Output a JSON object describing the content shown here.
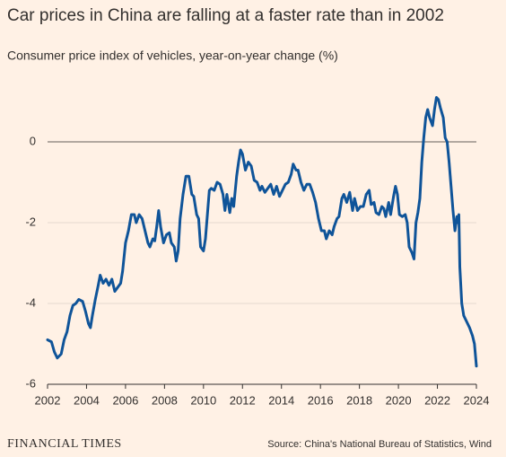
{
  "chart_data": {
    "type": "line",
    "title": "Car prices in China are falling at a faster rate than in 2002",
    "subtitle": "Consumer price index of vehicles, year-on-year change (%)",
    "logo": "FINANCIAL TIMES",
    "source": "Source: China's National Bureau of Statistics, Wind",
    "color": "#0f5499",
    "xlim": [
      2002,
      2024
    ],
    "xticks": [
      2002,
      2004,
      2006,
      2008,
      2010,
      2012,
      2014,
      2016,
      2018,
      2020,
      2022,
      2024
    ],
    "ylim": [
      -6,
      1.5
    ],
    "yticks": [
      0,
      -2,
      -4,
      -6
    ],
    "grid": true,
    "x": [
      2002.0,
      2002.2,
      2002.35,
      2002.5,
      2002.7,
      2002.85,
      2003.0,
      2003.15,
      2003.3,
      2003.45,
      2003.6,
      2003.8,
      2003.95,
      2004.1,
      2004.2,
      2004.3,
      2004.45,
      2004.6,
      2004.7,
      2004.85,
      2005.0,
      2005.15,
      2005.3,
      2005.45,
      2005.6,
      2005.75,
      2005.85,
      2006.0,
      2006.15,
      2006.3,
      2006.45,
      2006.55,
      2006.7,
      2006.85,
      2007.0,
      2007.15,
      2007.25,
      2007.4,
      2007.5,
      2007.6,
      2007.7,
      2007.8,
      2007.95,
      2008.1,
      2008.25,
      2008.35,
      2008.5,
      2008.6,
      2008.7,
      2008.8,
      2008.95,
      2009.1,
      2009.25,
      2009.4,
      2009.5,
      2009.65,
      2009.75,
      2009.85,
      2010.0,
      2010.1,
      2010.2,
      2010.3,
      2010.4,
      2010.55,
      2010.7,
      2010.85,
      2011.0,
      2011.1,
      2011.2,
      2011.35,
      2011.45,
      2011.55,
      2011.7,
      2011.8,
      2011.9,
      2012.0,
      2012.15,
      2012.3,
      2012.45,
      2012.6,
      2012.75,
      2012.9,
      2013.0,
      2013.15,
      2013.3,
      2013.45,
      2013.6,
      2013.75,
      2013.9,
      2014.05,
      2014.2,
      2014.35,
      2014.5,
      2014.6,
      2014.75,
      2014.85,
      2015.0,
      2015.15,
      2015.3,
      2015.45,
      2015.6,
      2015.75,
      2015.9,
      2016.05,
      2016.2,
      2016.3,
      2016.45,
      2016.6,
      2016.7,
      2016.85,
      2016.95,
      2017.1,
      2017.2,
      2017.35,
      2017.5,
      2017.65,
      2017.75,
      2017.9,
      2018.05,
      2018.2,
      2018.35,
      2018.5,
      2018.6,
      2018.75,
      2018.85,
      2019.0,
      2019.15,
      2019.25,
      2019.35,
      2019.5,
      2019.6,
      2019.75,
      2019.85,
      2019.95,
      2020.05,
      2020.2,
      2020.35,
      2020.45,
      2020.55,
      2020.7,
      2020.8,
      2020.9,
      2021.0,
      2021.1,
      2021.2,
      2021.3,
      2021.4,
      2021.5,
      2021.6,
      2021.75,
      2021.85,
      2021.95,
      2022.05,
      2022.15,
      2022.3,
      2022.4,
      2022.5,
      2022.6,
      2022.7,
      2022.8,
      2022.9,
      2023.0,
      2023.05,
      2023.1,
      2023.15,
      2023.25,
      2023.35,
      2023.5,
      2023.65,
      2023.8,
      2023.9,
      2024.0
    ],
    "values": [
      -4.9,
      -4.95,
      -5.2,
      -5.35,
      -5.25,
      -4.9,
      -4.7,
      -4.3,
      -4.05,
      -4.0,
      -3.9,
      -3.95,
      -4.2,
      -4.5,
      -4.6,
      -4.3,
      -3.9,
      -3.55,
      -3.3,
      -3.5,
      -3.4,
      -3.55,
      -3.4,
      -3.7,
      -3.6,
      -3.5,
      -3.2,
      -2.5,
      -2.2,
      -1.8,
      -1.8,
      -2.0,
      -1.8,
      -1.9,
      -2.2,
      -2.5,
      -2.6,
      -2.4,
      -2.45,
      -2.1,
      -1.7,
      -2.1,
      -2.5,
      -2.3,
      -2.25,
      -2.5,
      -2.6,
      -2.95,
      -2.7,
      -1.9,
      -1.3,
      -0.85,
      -0.85,
      -1.3,
      -1.35,
      -1.8,
      -1.9,
      -2.6,
      -2.7,
      -2.4,
      -1.8,
      -1.2,
      -1.15,
      -1.2,
      -1.0,
      -1.05,
      -1.3,
      -1.7,
      -1.3,
      -1.75,
      -1.4,
      -1.6,
      -0.85,
      -0.5,
      -0.2,
      -0.3,
      -0.7,
      -0.5,
      -0.6,
      -0.95,
      -1.0,
      -1.2,
      -1.1,
      -1.25,
      -1.15,
      -1.05,
      -1.3,
      -1.1,
      -1.35,
      -1.2,
      -1.05,
      -1.0,
      -0.8,
      -0.55,
      -0.7,
      -0.7,
      -1.0,
      -1.2,
      -1.05,
      -1.05,
      -1.25,
      -1.5,
      -1.9,
      -2.2,
      -2.2,
      -2.4,
      -2.2,
      -2.3,
      -2.1,
      -1.9,
      -1.85,
      -1.4,
      -1.3,
      -1.5,
      -1.25,
      -1.7,
      -1.4,
      -1.7,
      -1.6,
      -1.6,
      -1.3,
      -1.2,
      -1.55,
      -1.5,
      -1.75,
      -1.8,
      -1.6,
      -1.65,
      -1.85,
      -1.5,
      -1.8,
      -1.35,
      -1.1,
      -1.3,
      -1.8,
      -1.85,
      -1.8,
      -2.0,
      -2.6,
      -2.75,
      -2.9,
      -2.0,
      -1.75,
      -1.4,
      -0.5,
      0.1,
      0.6,
      0.8,
      0.6,
      0.4,
      0.8,
      1.1,
      1.05,
      0.85,
      0.6,
      0.1,
      0,
      -0.5,
      -1.1,
      -1.7,
      -2.2,
      -1.85,
      -2.0,
      -1.8,
      -3.1,
      -4.0,
      -4.3,
      -4.45,
      -4.6,
      -4.8,
      -5.0,
      -5.55
    ]
  }
}
